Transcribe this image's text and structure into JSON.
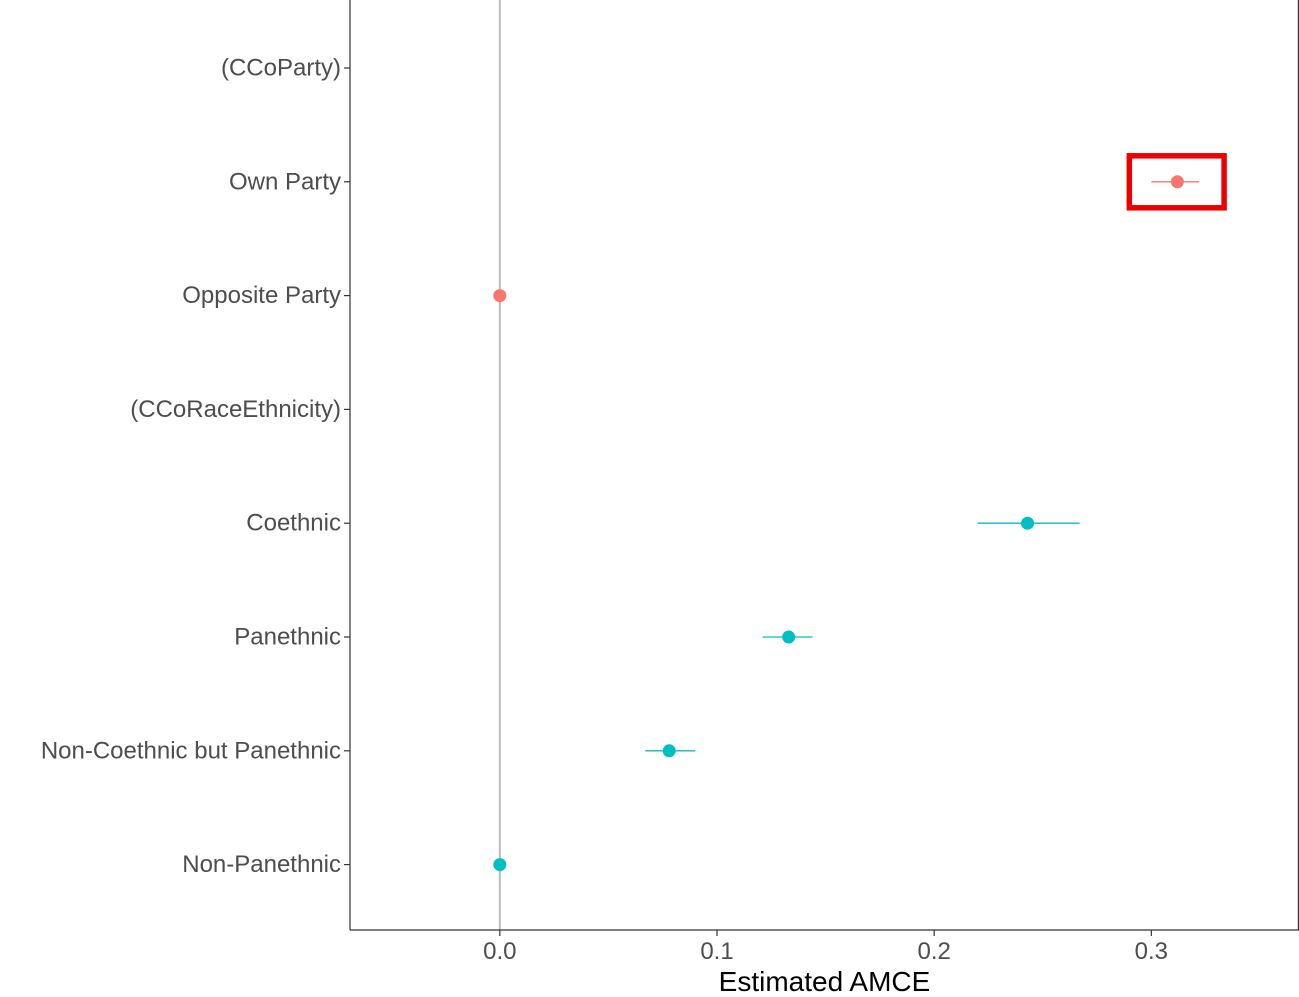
{
  "chart_data": {
    "type": "scatter",
    "orientation": "horizontal",
    "xlabel": "Estimated AMCE",
    "ylabel": "",
    "xlim": [
      -0.069,
      0.368
    ],
    "x_ticks": [
      0.0,
      0.1,
      0.2,
      0.3
    ],
    "x_tick_labels": [
      "0.0",
      "0.1",
      "0.2",
      "0.3"
    ],
    "reference_line_x": 0.0,
    "grid": false,
    "legend": "none",
    "categories": [
      "(CCoParty)",
      "Own Party",
      "Opposite Party",
      "(CCoRaceEthnicity)",
      "Coethnic",
      "Panethnic",
      "Non-Coethnic but Panethnic",
      "Non-Panethnic"
    ],
    "points": [
      {
        "category": "Own Party",
        "estimate": 0.312,
        "lower": 0.3,
        "upper": 0.322,
        "color": "#F8766D",
        "highlighted": true
      },
      {
        "category": "Opposite Party",
        "estimate": 0.0,
        "lower": 0.0,
        "upper": 0.0,
        "color": "#F8766D",
        "highlighted": false
      },
      {
        "category": "Coethnic",
        "estimate": 0.243,
        "lower": 0.22,
        "upper": 0.267,
        "color": "#00BFC4",
        "highlighted": false
      },
      {
        "category": "Panethnic",
        "estimate": 0.133,
        "lower": 0.121,
        "upper": 0.144,
        "color": "#00BFC4",
        "highlighted": false
      },
      {
        "category": "Non-Coethnic but Panethnic",
        "estimate": 0.078,
        "lower": 0.067,
        "upper": 0.09,
        "color": "#00BFC4",
        "highlighted": false
      },
      {
        "category": "Non-Panethnic",
        "estimate": 0.0,
        "lower": 0.0,
        "upper": 0.0,
        "color": "#00BFC4",
        "highlighted": false
      }
    ],
    "highlight_color": "#EE0000"
  }
}
